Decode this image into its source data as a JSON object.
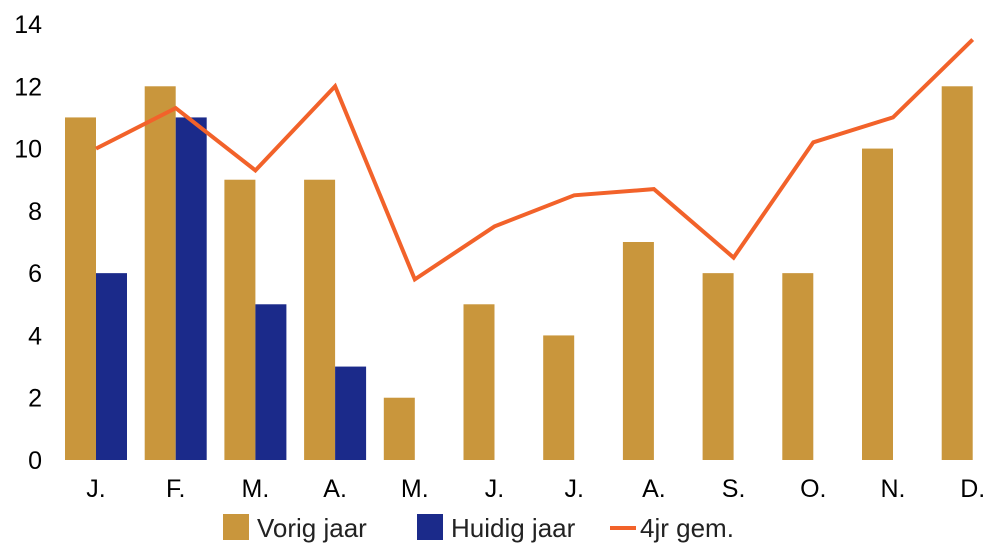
{
  "chart_data": {
    "type": "bar",
    "categories": [
      "J.",
      "F.",
      "M.",
      "A.",
      "M.",
      "J.",
      "J.",
      "A.",
      "S.",
      "O.",
      "N.",
      "D."
    ],
    "series": [
      {
        "name": "Vorig jaar",
        "kind": "bar",
        "color": "#C9963C",
        "values": [
          11,
          12,
          9,
          9,
          2,
          5,
          4,
          7,
          6,
          6,
          10,
          12
        ]
      },
      {
        "name": "Huidig jaar",
        "kind": "bar",
        "color": "#1B2A8A",
        "values": [
          6,
          11,
          5,
          3,
          null,
          null,
          null,
          null,
          null,
          null,
          null,
          null
        ]
      },
      {
        "name": "4jr gem.",
        "kind": "line",
        "color": "#F2622A",
        "values": [
          10,
          11.3,
          9.3,
          12,
          5.8,
          7.5,
          8.5,
          8.7,
          6.5,
          10.2,
          11,
          13.5
        ]
      }
    ],
    "y_ticks": [
      "0",
      "2",
      "4",
      "6",
      "8",
      "10",
      "12",
      "14"
    ],
    "ylim": [
      0,
      14
    ],
    "grid": false,
    "legend_position": "bottom"
  }
}
